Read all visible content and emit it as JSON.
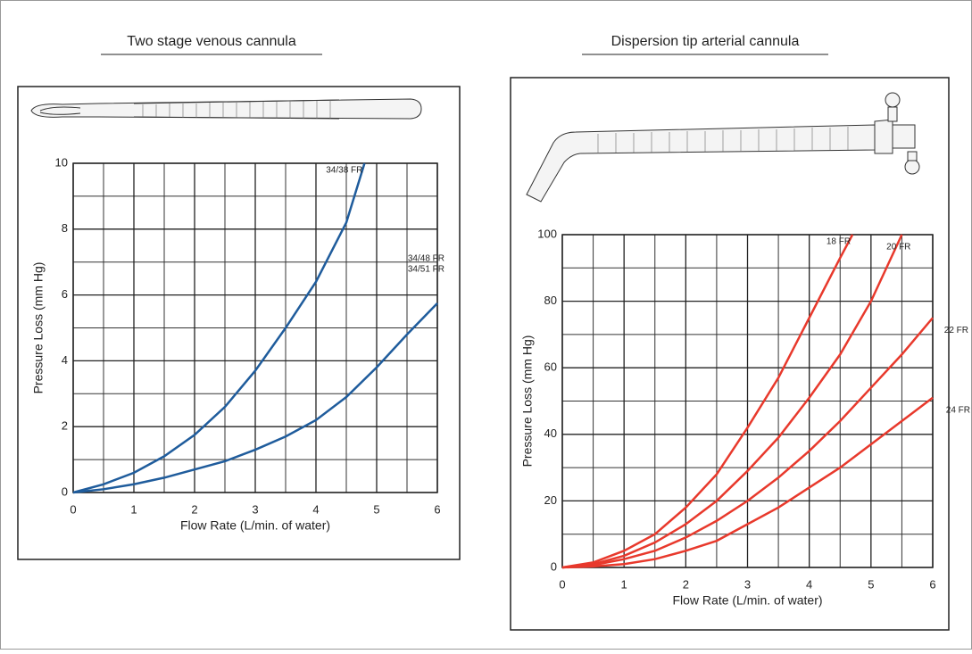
{
  "chart_data": [
    {
      "type": "line",
      "title": "Two stage venous cannula",
      "xlabel": "Flow Rate (L/min. of water)",
      "ylabel": "Pressure Loss (mm Hg)",
      "xlim": [
        0,
        6
      ],
      "ylim": [
        0,
        10
      ],
      "xticks": [
        0,
        1,
        2,
        3,
        4,
        5,
        6
      ],
      "yticks": [
        0,
        2,
        4,
        6,
        8,
        10
      ],
      "xminorticks": [
        0.5,
        1.5,
        2.5,
        3.5,
        4.5,
        5.5
      ],
      "yminorticks": [
        1,
        3,
        5,
        7,
        9
      ],
      "grid": true,
      "series": [
        {
          "name": "34/38 FR",
          "color": "#1f5c9c",
          "x": [
            0,
            0.5,
            1,
            1.5,
            2,
            2.5,
            3,
            3.5,
            4,
            4.5,
            4.8
          ],
          "values": [
            0,
            0.25,
            0.6,
            1.1,
            1.75,
            2.6,
            3.7,
            5.0,
            6.4,
            8.2,
            10
          ]
        },
        {
          "labels": [
            "34/48 FR",
            "34/51 FR"
          ],
          "color": "#1f5c9c",
          "x": [
            0,
            0.5,
            1,
            1.5,
            2,
            2.5,
            3,
            3.5,
            4,
            4.5,
            5,
            5.5,
            6
          ],
          "values": [
            0,
            0.1,
            0.25,
            0.45,
            0.7,
            0.95,
            1.3,
            1.7,
            2.2,
            2.9,
            3.8,
            4.8,
            5.75
          ]
        }
      ]
    },
    {
      "type": "line",
      "title": "Dispersion tip arterial cannula",
      "xlabel": "Flow Rate (L/min. of water)",
      "ylabel": "Pressure Loss (mm Hg)",
      "xlim": [
        0,
        6
      ],
      "ylim": [
        0,
        100
      ],
      "xticks": [
        0,
        1,
        2,
        3,
        4,
        5,
        6
      ],
      "yticks": [
        0,
        20,
        40,
        60,
        80,
        100
      ],
      "xminorticks": [
        0.5,
        1.5,
        2.5,
        3.5,
        4.5,
        5.5
      ],
      "yminorticks": [
        10,
        30,
        50,
        70,
        90
      ],
      "grid": true,
      "series": [
        {
          "name": "18 FR",
          "color": "#e8392c",
          "x": [
            0,
            0.5,
            1,
            1.5,
            2,
            2.5,
            3,
            3.5,
            4,
            4.5,
            4.7
          ],
          "values": [
            0,
            1.5,
            5,
            10,
            18,
            28,
            42,
            57,
            75,
            93,
            100
          ]
        },
        {
          "name": "20 FR",
          "color": "#e8392c",
          "x": [
            0,
            0.5,
            1,
            1.5,
            2,
            2.5,
            3,
            3.5,
            4,
            4.5,
            5,
            5.5
          ],
          "values": [
            0,
            1,
            3.5,
            7.5,
            13,
            20,
            29,
            39,
            51,
            64,
            80,
            100
          ]
        },
        {
          "name": "22 FR",
          "color": "#e8392c",
          "x": [
            0,
            0.5,
            1,
            1.5,
            2,
            2.5,
            3,
            3.5,
            4,
            4.5,
            5,
            5.5,
            6
          ],
          "values": [
            0,
            0.7,
            2.5,
            5,
            9,
            14,
            20,
            27,
            35,
            44,
            54,
            64,
            75
          ]
        },
        {
          "name": "24 FR",
          "color": "#e8392c",
          "x": [
            0,
            0.5,
            1,
            1.5,
            2,
            2.5,
            3,
            3.5,
            4,
            4.5,
            5,
            5.5,
            6
          ],
          "values": [
            0,
            0.3,
            1,
            2.5,
            5,
            8,
            13,
            18,
            24,
            30,
            37,
            44,
            51
          ]
        }
      ]
    }
  ]
}
